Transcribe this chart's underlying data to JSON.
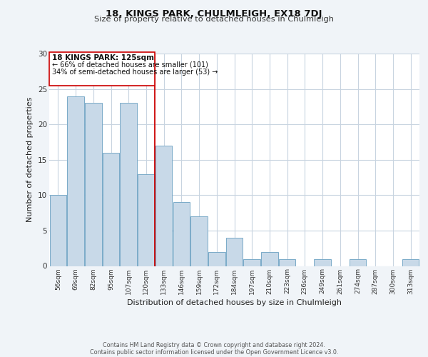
{
  "title": "18, KINGS PARK, CHULMLEIGH, EX18 7DJ",
  "subtitle": "Size of property relative to detached houses in Chulmleigh",
  "xlabel": "Distribution of detached houses by size in Chulmleigh",
  "ylabel": "Number of detached properties",
  "categories": [
    "56sqm",
    "69sqm",
    "82sqm",
    "95sqm",
    "107sqm",
    "120sqm",
    "133sqm",
    "146sqm",
    "159sqm",
    "172sqm",
    "184sqm",
    "197sqm",
    "210sqm",
    "223sqm",
    "236sqm",
    "249sqm",
    "261sqm",
    "274sqm",
    "287sqm",
    "300sqm",
    "313sqm"
  ],
  "values": [
    10,
    24,
    23,
    16,
    23,
    13,
    17,
    9,
    7,
    2,
    4,
    1,
    2,
    1,
    0,
    1,
    0,
    1,
    0,
    0,
    1
  ],
  "bar_color": "#c8d9e8",
  "bar_edge_color": "#7aaac8",
  "vline_x": 5.5,
  "vline_color": "#cc0000",
  "ylim": [
    0,
    30
  ],
  "yticks": [
    0,
    5,
    10,
    15,
    20,
    25,
    30
  ],
  "annotation_title": "18 KINGS PARK: 125sqm",
  "annotation_line1": "← 66% of detached houses are smaller (101)",
  "annotation_line2": "34% of semi-detached houses are larger (53) →",
  "annotation_box_color": "#ffffff",
  "annotation_box_edge": "#cc0000",
  "footer_line1": "Contains HM Land Registry data © Crown copyright and database right 2024.",
  "footer_line2": "Contains public sector information licensed under the Open Government Licence v3.0.",
  "background_color": "#f0f4f8",
  "plot_background": "#ffffff",
  "grid_color": "#c8d4e0"
}
